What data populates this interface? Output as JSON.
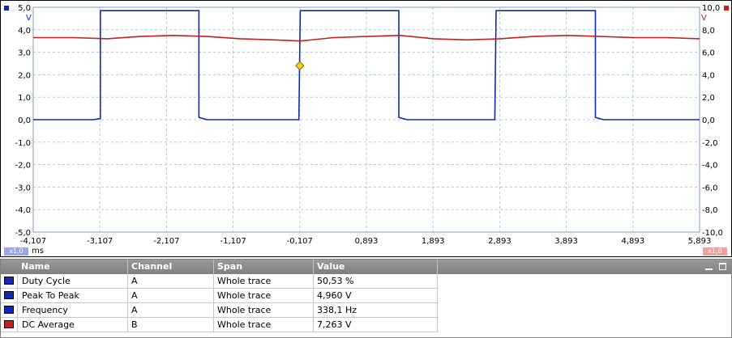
{
  "scope": {
    "channel_a_unit": "V",
    "channel_b_unit": "V",
    "time_unit": "ms",
    "channel_a_badge": "x1,0",
    "channel_b_badge": "x1,0",
    "channel_a_color": "#1428b4",
    "channel_b_color": "#c81e1e"
  },
  "chart_data": {
    "type": "line",
    "x_ticks": [
      "-4,107",
      "-3,107",
      "-2,107",
      "-1,107",
      "-0,107",
      "0,893",
      "1,893",
      "2,893",
      "3,893",
      "4,893",
      "5,893"
    ],
    "xlim": [
      -4.107,
      5.893
    ],
    "y_left_ticks": [
      "5,0",
      "4,0",
      "3,0",
      "2,0",
      "1,0",
      "0,0",
      "-1,0",
      "-2,0",
      "-3,0",
      "-4,0",
      "-5,0"
    ],
    "y_left_lim": [
      -5,
      5
    ],
    "y_right_ticks": [
      "10,0",
      "8,0",
      "6,0",
      "4,0",
      "2,0",
      "0,0",
      "-2,0",
      "-4,0",
      "-6,0",
      "-8,0",
      "-10,0"
    ],
    "y_right_lim": [
      -10,
      10
    ],
    "grid": true,
    "trigger": {
      "x": -0.107,
      "y": 2.4
    },
    "series": [
      {
        "channel": "A",
        "axis": "left",
        "color": "#1428b4",
        "x": [
          -4.107,
          -3.2,
          -3.1,
          -3.1,
          -1.62,
          -1.62,
          -1.5,
          -0.12,
          -0.1,
          1.38,
          1.38,
          1.5,
          2.82,
          2.84,
          4.33,
          4.33,
          4.45,
          5.893
        ],
        "y": [
          0.0,
          0.0,
          0.05,
          4.85,
          4.85,
          0.1,
          0.0,
          0.0,
          4.85,
          4.85,
          0.1,
          0.0,
          0.0,
          4.85,
          4.85,
          0.1,
          0.0,
          0.0
        ]
      },
      {
        "channel": "B",
        "axis": "right",
        "color": "#c81e1e",
        "x": [
          -4.107,
          -3.5,
          -3.0,
          -2.5,
          -2.0,
          -1.5,
          -1.0,
          -0.5,
          -0.1,
          0.4,
          0.9,
          1.4,
          1.9,
          2.4,
          2.9,
          3.4,
          3.9,
          4.4,
          4.9,
          5.4,
          5.893
        ],
        "y": [
          7.3,
          7.3,
          7.2,
          7.4,
          7.5,
          7.4,
          7.2,
          7.1,
          7.0,
          7.3,
          7.4,
          7.5,
          7.2,
          7.1,
          7.2,
          7.4,
          7.5,
          7.4,
          7.3,
          7.3,
          7.2
        ]
      }
    ]
  },
  "measurements": {
    "headers": {
      "name": "Name",
      "channel": "Channel",
      "span": "Span",
      "value": "Value"
    },
    "rows": [
      {
        "name": "Duty Cycle",
        "channel": "A",
        "span": "Whole trace",
        "value": "50,53 %",
        "color": "#1428b4"
      },
      {
        "name": "Peak To Peak",
        "channel": "A",
        "span": "Whole trace",
        "value": "4,960 V",
        "color": "#1428b4"
      },
      {
        "name": "Frequency",
        "channel": "A",
        "span": "Whole trace",
        "value": "338,1 Hz",
        "color": "#1428b4"
      },
      {
        "name": "DC Average",
        "channel": "B",
        "span": "Whole trace",
        "value": "7,263 V",
        "color": "#c81e1e"
      }
    ]
  }
}
